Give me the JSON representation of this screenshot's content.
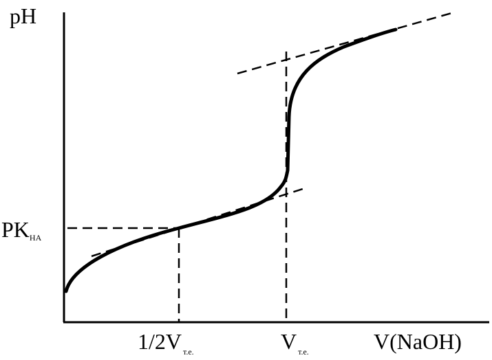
{
  "diagram": {
    "y_axis_label": "pH",
    "x_axis_label": "V(NaOH)",
    "pka_label": {
      "main": "PK",
      "sub": "HA"
    },
    "half_equivalence_label": {
      "main": "1/2V",
      "sub": "т.е."
    },
    "equivalence_label": {
      "main": "V",
      "sub": "т.е."
    },
    "colors": {
      "ink": "#000000",
      "background": "#ffffff"
    }
  }
}
